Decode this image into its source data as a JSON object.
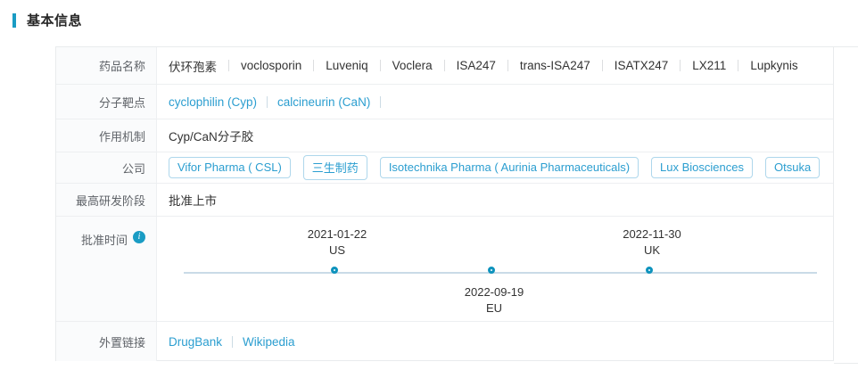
{
  "colors": {
    "accent": "#1a9cc4",
    "link": "#2b9ed0",
    "timeline_line": "#c9dbe7",
    "marker_border": "#0e93bd"
  },
  "section_title": "基本信息",
  "info_icon_glyph": "i",
  "rows": {
    "drug_name": {
      "label": "药品名称",
      "values": [
        "伏环孢素",
        "voclosporin",
        "Luveniq",
        "Voclera",
        "ISA247",
        "trans-ISA247",
        "ISATX247",
        "LX211",
        "Lupkynis"
      ]
    },
    "target": {
      "label": "分子靶点",
      "values": [
        "cyclophilin (Cyp)",
        "calcineurin (CaN)"
      ]
    },
    "mechanism": {
      "label": "作用机制",
      "value": "Cyp/CaN分子胶"
    },
    "company": {
      "label": "公司",
      "values": [
        "Vifor Pharma ( CSL)",
        "三生制药",
        "Isotechnika Pharma ( Aurinia Pharmaceuticals)",
        "Lux Biosciences",
        "Otsuka"
      ]
    },
    "highest_stage": {
      "label": "最高研发阶段",
      "value": "批准上市"
    },
    "approval_time": {
      "label": "批准时间",
      "events": [
        {
          "date": "2021-01-22",
          "region": "US"
        },
        {
          "date": "2022-09-19",
          "region": "EU"
        },
        {
          "date": "2022-11-30",
          "region": "UK"
        }
      ]
    },
    "external_links": {
      "label": "外置链接",
      "values": [
        "DrugBank",
        "Wikipedia"
      ]
    }
  }
}
